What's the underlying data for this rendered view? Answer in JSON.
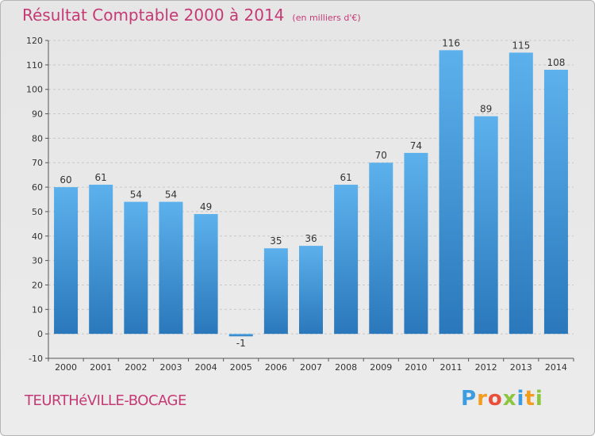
{
  "header": {
    "title": "Résultat Comptable 2000 à 2014",
    "subtitle": "(en milliers d'€)"
  },
  "footer": {
    "place": "TEURTHéVILLE-BOCAGE",
    "brand": "Proxiti",
    "brand_letters": [
      {
        "ch": "P",
        "color": "#3d9be0"
      },
      {
        "ch": "r",
        "color": "#f39c1f"
      },
      {
        "ch": "o",
        "color": "#e94f3a"
      },
      {
        "ch": "x",
        "color": "#8cc63f"
      },
      {
        "ch": "i",
        "color": "#3d9be0"
      },
      {
        "ch": "t",
        "color": "#f39c1f"
      },
      {
        "ch": "i",
        "color": "#8cc63f"
      }
    ]
  },
  "chart_data": {
    "type": "bar",
    "categories": [
      "2000",
      "2001",
      "2002",
      "2003",
      "2004",
      "2005",
      "2006",
      "2007",
      "2008",
      "2009",
      "2010",
      "2011",
      "2012",
      "2013",
      "2014"
    ],
    "values": [
      60,
      61,
      54,
      54,
      49,
      -1,
      35,
      36,
      61,
      70,
      74,
      116,
      89,
      115,
      108
    ],
    "ylim": [
      -10,
      120
    ],
    "yticks": [
      -10,
      0,
      10,
      20,
      30,
      40,
      50,
      60,
      70,
      80,
      90,
      100,
      110,
      120
    ],
    "grid": true,
    "colors": {
      "bar_light": "#5aaeea",
      "bar_dark": "#2b7dc0",
      "grid": "#c8c8c8",
      "axis_text": "#333333"
    }
  }
}
